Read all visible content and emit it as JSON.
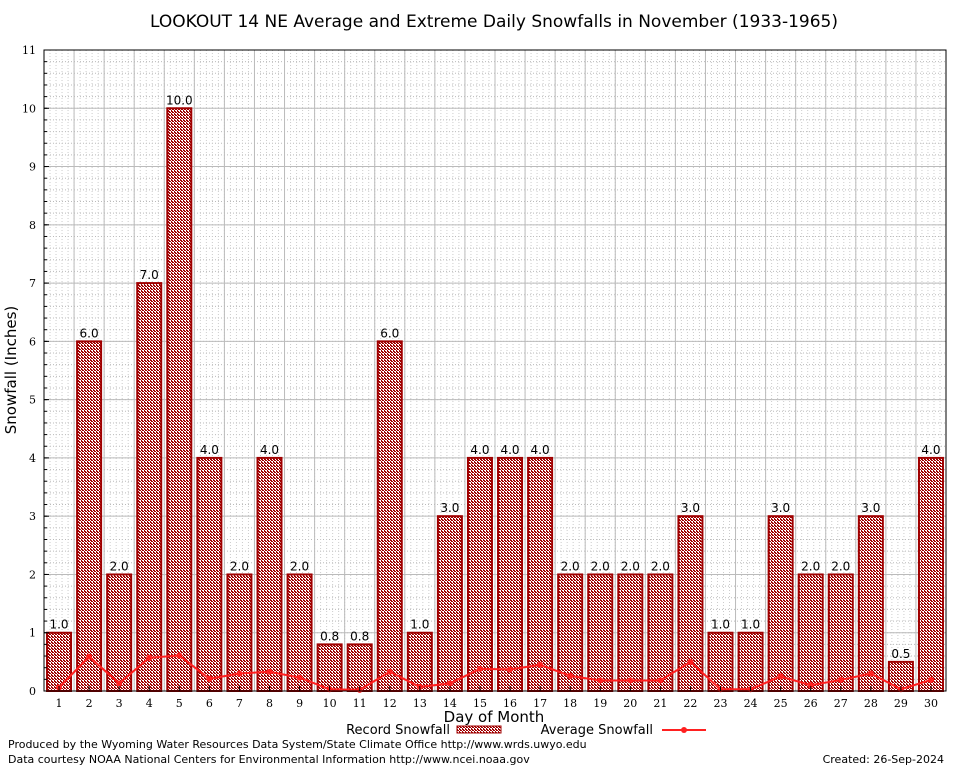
{
  "chart_data": {
    "type": "bar",
    "title": "LOOKOUT 14 NE Average and Extreme Daily Snowfalls in November (1933-1965)",
    "xlabel": "Day of Month",
    "ylabel": "Snowfall (Inches)",
    "ylim": [
      0,
      11
    ],
    "yticks": [
      0,
      1,
      2,
      3,
      4,
      5,
      6,
      7,
      8,
      9,
      10,
      11
    ],
    "grid": true,
    "legend_placement": "bottom",
    "categories": [
      1,
      2,
      3,
      4,
      5,
      6,
      7,
      8,
      9,
      10,
      11,
      12,
      13,
      14,
      15,
      16,
      17,
      18,
      19,
      20,
      21,
      22,
      23,
      24,
      25,
      26,
      27,
      28,
      29,
      30
    ],
    "series": [
      {
        "name": "Record Snowfall",
        "type": "bar",
        "color": "#a00000",
        "values": [
          1.0,
          6.0,
          2.0,
          7.0,
          10.0,
          4.0,
          2.0,
          4.0,
          2.0,
          0.8,
          0.8,
          6.0,
          1.0,
          3.0,
          4.0,
          4.0,
          4.0,
          2.0,
          2.0,
          2.0,
          2.0,
          3.0,
          1.0,
          1.0,
          3.0,
          2.0,
          2.0,
          3.0,
          0.5,
          4.0
        ]
      },
      {
        "name": "Average Snowfall",
        "type": "line",
        "color": "#ff2020",
        "values": [
          0.06,
          0.59,
          0.13,
          0.57,
          0.61,
          0.21,
          0.3,
          0.33,
          0.23,
          0.03,
          0.02,
          0.33,
          0.07,
          0.13,
          0.38,
          0.37,
          0.45,
          0.26,
          0.18,
          0.18,
          0.18,
          0.5,
          0.03,
          0.03,
          0.25,
          0.1,
          0.19,
          0.3,
          0.03,
          0.19
        ]
      }
    ]
  },
  "footer": {
    "produced_by": "Produced by the Wyoming Water Resources Data System/State Climate Office http://www.wrds.uwyo.edu",
    "courtesy": "Data courtesy NOAA National Centers for Environmental Information http://www.ncei.noaa.gov",
    "created": "Created:  26-Sep-2024"
  }
}
